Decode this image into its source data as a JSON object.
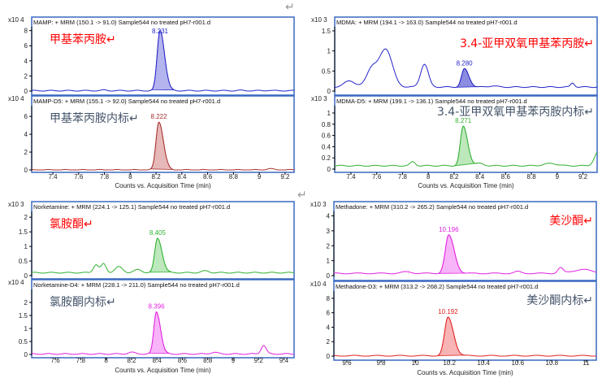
{
  "return_mark": "↵",
  "chart_data": [
    {
      "type": "line",
      "title": "MAMP: + MRM (150.1 -> 91.0) Sample544 no treated pH7-r001.d",
      "label": "甲基苯丙胺↵",
      "label_color": "#ff0000",
      "exponent": "x10 4",
      "xlim": [
        7.236,
        9.27
      ],
      "ylim": [
        0,
        8.5
      ],
      "yticks": [
        0,
        2,
        4,
        6,
        8
      ],
      "ytick_labels": [
        "0",
        "2",
        "4",
        "6",
        "8"
      ],
      "baseline": 0.05,
      "color": "#2424c8",
      "fill": "#b4b4ee",
      "peak": {
        "rt": 8.231,
        "label": "8.231",
        "height": 8.0,
        "sigma": 0.022
      },
      "features": [
        [
          7.8,
          0.08,
          0.02
        ],
        [
          8.85,
          0.04,
          0.02
        ],
        [
          9.07,
          0.05,
          0.02
        ]
      ]
    },
    {
      "type": "line",
      "title": "MAMP-D5: + MRM (155.1 -> 92.0) Sample544 no treated pH7-r001.d",
      "label": "甲基苯丙胺内标↵",
      "label_color": "#44546a",
      "exponent": "x10 4",
      "xlim": [
        7.236,
        9.27
      ],
      "ylim": [
        0,
        7.2
      ],
      "yticks": [
        0,
        2,
        4,
        6
      ],
      "ytick_labels": [
        "0",
        "2",
        "4",
        "6"
      ],
      "baseline": 0.0,
      "color": "#a83030",
      "fill": "#e6b8b8",
      "peak": {
        "rt": 8.222,
        "label": "8.222",
        "height": 5.4,
        "sigma": 0.022
      },
      "features": [
        [
          9.08,
          0.12,
          0.03
        ]
      ]
    },
    {
      "type": "line",
      "title": "MDMA: + MRM (194.1 -> 163.0) Sample544 no treated pH7-r001.d",
      "label": "3.4-亚甲双氧甲基苯丙胺↵",
      "label_color": "#ff0000",
      "exponent": "x10 3",
      "xlim": [
        7.274,
        9.31
      ],
      "ylim": [
        0,
        1.6
      ],
      "yticks": [
        0,
        0.5,
        1,
        1.5
      ],
      "ytick_labels": [
        "0",
        "0.5",
        "1",
        "1.5"
      ],
      "baseline": 0.1,
      "color": "#2424c8",
      "fill": "#8c8ce0",
      "peak": {
        "rt": 8.28,
        "label": "8.280",
        "height": 0.45,
        "sigma": 0.022
      },
      "features": [
        [
          7.39,
          0.16,
          0.04
        ],
        [
          7.56,
          0.45,
          0.04
        ],
        [
          7.67,
          0.95,
          0.05
        ],
        [
          7.97,
          0.57,
          0.03
        ],
        [
          8.5,
          0.03,
          0.03
        ],
        [
          9.12,
          0.1,
          0.015
        ]
      ]
    },
    {
      "type": "line",
      "title": "MDMA-D5: + MRM (199.1 -> 136.1) Sample544 no treated pH7-r001.d",
      "label": "3.4-亚甲双氧甲基苯丙胺内标↵",
      "label_color": "#44546a",
      "exponent": "x10 3",
      "xlim": [
        7.274,
        9.31
      ],
      "ylim": [
        0,
        1.13
      ],
      "yticks": [
        0,
        0.2,
        0.4,
        0.6,
        0.8,
        1
      ],
      "ytick_labels": [
        "0",
        "0.2",
        "0.4",
        "0.6",
        "0.8",
        "1"
      ],
      "baseline": 0.06,
      "color": "#30b030",
      "fill": "#bce8bc",
      "peak": {
        "rt": 8.271,
        "label": "8.271",
        "height": 0.7,
        "sigma": 0.022
      },
      "features": [
        [
          7.88,
          0.07,
          0.02
        ],
        [
          8.4,
          0.04,
          0.03
        ],
        [
          8.95,
          0.04,
          0.05
        ],
        [
          9.32,
          0.25,
          0.03
        ]
      ]
    },
    {
      "type": "line",
      "title": "Norketamine: + MRM (224.1 -> 125.1) Sample544 no treated pH7-r001.d",
      "label": "氯胺酮↵",
      "label_color": "#ff0000",
      "exponent": "x10 3",
      "xlim": [
        7.414,
        9.48
      ],
      "ylim": [
        0,
        2.2
      ],
      "yticks": [
        0,
        0.5,
        1,
        1.5,
        2
      ],
      "ytick_labels": [
        "0",
        "0.5",
        "1",
        "1.5",
        "2"
      ],
      "baseline": 0.1,
      "color": "#30b030",
      "fill": "#bce8bc",
      "peak": {
        "rt": 8.405,
        "label": "8.405",
        "height": 1.18,
        "sigma": 0.022
      },
      "features": [
        [
          7.92,
          0.28,
          0.02
        ],
        [
          7.98,
          0.3,
          0.02
        ],
        [
          8.1,
          0.2,
          0.03
        ],
        [
          8.25,
          0.1,
          0.03
        ],
        [
          8.78,
          0.06,
          0.03
        ]
      ]
    },
    {
      "type": "line",
      "title": "Norketamine-D4: + MRM (228.1 -> 211.0) Sample544 no treated pH7-r001.d",
      "label": "氯胺酮内标↵",
      "label_color": "#44546a",
      "exponent": "x10 4",
      "xlim": [
        7.414,
        9.48
      ],
      "ylim": [
        0,
        2.5
      ],
      "yticks": [
        0,
        0.5,
        1,
        1.5,
        2
      ],
      "ytick_labels": [
        "0",
        "0.5",
        "1",
        "1.5",
        "2"
      ],
      "baseline": 0.02,
      "color": "#e020e0",
      "fill": "#f8b4f8",
      "peak": {
        "rt": 8.396,
        "label": "8.396",
        "height": 1.63,
        "sigma": 0.02
      },
      "features": [
        [
          8.2,
          0.06,
          0.03
        ],
        [
          8.85,
          0.06,
          0.03
        ],
        [
          9.24,
          0.33,
          0.02
        ]
      ]
    },
    {
      "type": "line",
      "title": "Methadone: + MRM (310.2 -> 265.2) Sample544 no treated pH7-r001.d",
      "label": "美沙酮↵",
      "label_color": "#ff0000",
      "exponent": "x10 3",
      "xlim": [
        9.524,
        11.06
      ],
      "ylim": [
        0,
        4.3
      ],
      "yticks": [
        0,
        1,
        2,
        3,
        4
      ],
      "ytick_labels": [
        "0",
        "1",
        "2",
        "3",
        "4"
      ],
      "baseline": 0.15,
      "color": "#e020e0",
      "fill": "#f8b4f8",
      "peak": {
        "rt": 10.196,
        "label": "10.196",
        "height": 2.55,
        "sigma": 0.02
      },
      "features": [
        [
          9.95,
          0.1,
          0.03
        ],
        [
          10.6,
          0.12,
          0.02
        ],
        [
          10.85,
          0.35,
          0.015
        ],
        [
          10.98,
          0.25,
          0.06
        ]
      ]
    },
    {
      "type": "line",
      "title": "Methadone-D3: + MRM (313.2 -> 268.2) Sample544 no treated pH7-r001.d",
      "label": "美沙酮内标↵",
      "label_color": "#44546a",
      "exponent": "x10 4",
      "xlim": [
        9.524,
        11.06
      ],
      "ylim": [
        0,
        9
      ],
      "yticks": [
        0,
        2,
        4,
        6,
        8
      ],
      "ytick_labels": [
        "0",
        "2",
        "4",
        "6",
        "8"
      ],
      "baseline": 0.05,
      "color": "#e02020",
      "fill": "#f8b4b4",
      "peak": {
        "rt": 10.192,
        "label": "10.192",
        "height": 5.3,
        "sigma": 0.02
      },
      "features": []
    }
  ],
  "x_axes": [
    {
      "ticks": [
        7.4,
        7.6,
        7.8,
        8,
        8.2,
        8.4,
        8.6,
        8.8,
        9,
        9.2
      ],
      "labels": [
        "7.4",
        "7.6",
        "7.8",
        "8",
        "8.2",
        "8.4",
        "8.6",
        "8.8",
        "9",
        "9.2"
      ],
      "xlabel": "Counts vs. Acquisition Time (min)"
    },
    {
      "ticks": [
        7.4,
        7.6,
        7.8,
        8,
        8.2,
        8.4,
        8.6,
        8.8,
        9,
        9.2
      ],
      "labels": [
        "7.4",
        "7.6",
        "7.8",
        "8",
        "8.2",
        "8.4",
        "8.6",
        "8.8",
        "9",
        "9.2"
      ],
      "xlabel": "Counts vs. Acquisition Time (min)"
    },
    {
      "ticks": [
        7.6,
        7.8,
        8,
        8.2,
        8.4,
        8.6,
        8.8,
        9,
        9.2,
        9.4
      ],
      "labels": [
        "7.6",
        "7.8",
        "8",
        "8.2",
        "8.4",
        "8.6",
        "8.8",
        "9",
        "9.2",
        "9.4"
      ],
      "xlabel": "Counts vs. Acquisition Time (min)"
    },
    {
      "ticks": [
        9.6,
        9.8,
        10,
        10.2,
        10.4,
        10.6,
        10.8,
        11
      ],
      "labels": [
        "9.6",
        "9.8",
        "10",
        "10.2",
        "10.4",
        "10.6",
        "10.8",
        "11"
      ],
      "xlabel": "Counts vs. Acquisition Time (min)"
    }
  ]
}
